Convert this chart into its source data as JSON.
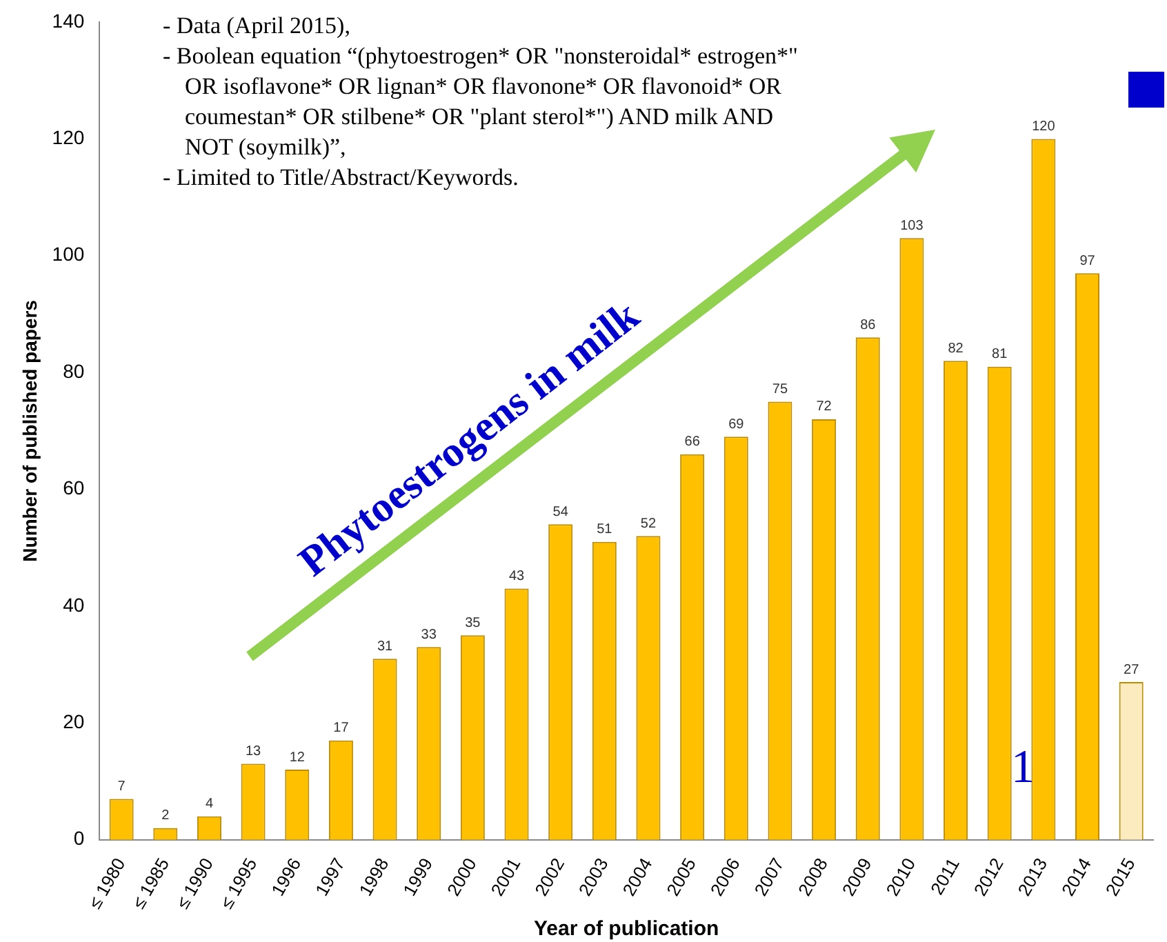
{
  "chart_data": {
    "type": "bar",
    "xlabel": "Year of publication",
    "ylabel": "Number of published papers",
    "categories": [
      "≤ 1980",
      "≤ 1985",
      "≤ 1990",
      "≤ 1995",
      "1996",
      "1997",
      "1998",
      "1999",
      "2000",
      "2001",
      "2002",
      "2003",
      "2004",
      "2005",
      "2006",
      "2007",
      "2008",
      "2009",
      "2010",
      "2011",
      "2012",
      "2013",
      "2014",
      "2015"
    ],
    "values": [
      7,
      2,
      4,
      13,
      12,
      17,
      31,
      33,
      35,
      43,
      54,
      51,
      52,
      66,
      69,
      75,
      72,
      86,
      103,
      82,
      81,
      120,
      97,
      27
    ],
    "colors": [
      "#ffc000",
      "#ffc000",
      "#ffc000",
      "#ffc000",
      "#ffc000",
      "#ffc000",
      "#ffc000",
      "#ffc000",
      "#ffc000",
      "#ffc000",
      "#ffc000",
      "#ffc000",
      "#ffc000",
      "#ffc000",
      "#ffc000",
      "#ffc000",
      "#ffc000",
      "#ffc000",
      "#ffc000",
      "#ffc000",
      "#ffc000",
      "#ffc000",
      "#ffc000",
      "#fdebc0"
    ],
    "ylim": [
      0,
      140
    ],
    "yticks": [
      0,
      20,
      40,
      60,
      80,
      100,
      120,
      140
    ],
    "grid": false,
    "legend": false,
    "data_labels": true,
    "annotations": [
      "- Data (April 2015),",
      "- Boolean equation “(phytoestrogen* OR \"nonsteroidal* estrogen*\" OR isoflavone* OR lignan* OR flavonone* OR flavonoid* OR coumestan* OR stilbene* OR \"plant sterol*\") AND milk AND NOT (soymilk)”,",
      "- Limited to Title/Abstract/Keywords.",
      "Phytoestrogens in milk",
      "1"
    ]
  }
}
